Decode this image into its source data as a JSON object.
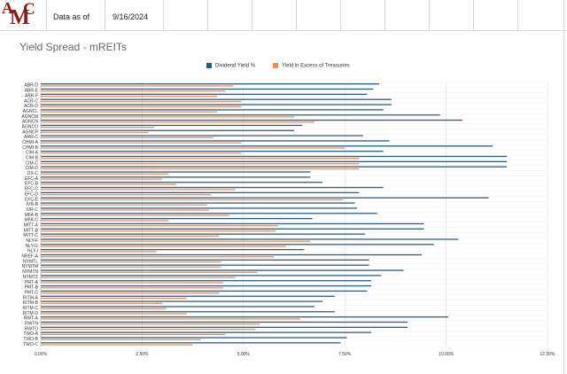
{
  "header": {
    "logo_text": "AMC",
    "data_as_of_label": "Data as of",
    "data_as_of_date": "9/16/2024"
  },
  "colors": {
    "dividend": "#2e5b7d",
    "excess": "#ef8c5a",
    "grid": "#dcdcdc",
    "border": "#d8d8d8"
  },
  "chart_data": {
    "type": "bar",
    "orientation": "horizontal",
    "title": "Yield Spread - mREITs",
    "xlabel": "",
    "ylabel": "",
    "xlim": [
      0,
      12.5
    ],
    "x_ticks": [
      0,
      2.5,
      5,
      7.5,
      10,
      12.5
    ],
    "x_tick_labels": [
      "0.00%",
      "2.50%",
      "5.00%",
      "7.50%",
      "10.00%",
      "12.50%"
    ],
    "grid": true,
    "legend_position": "top",
    "categories": [
      "ABR-D",
      "ABR-E",
      "ABR-F",
      "ACR-C",
      "ACR-D",
      "AGNCL",
      "AGNCM",
      "AGNCN",
      "AGNCO",
      "AGNCP",
      "ARR-C",
      "CHMI-A",
      "CHMI-B",
      "CIM-A",
      "CIM-B",
      "CIM-C",
      "CIM-D",
      "DX-C",
      "EFC-A",
      "EFC-B",
      "EFC-C",
      "EFC-D",
      "EFC-E",
      "IVR-B",
      "IVR-C",
      "MFA-B",
      "MFA-C",
      "MITT-A",
      "MITT-B",
      "MITT-C",
      "NLY-F",
      "NLY-G",
      "NLY-I",
      "NREF-A",
      "NYMTL",
      "NYMTM",
      "NYMTN",
      "NYMTZ",
      "PMT-A",
      "PMT-B",
      "PMT-C",
      "RITM-A",
      "RITM-B",
      "RITM-C",
      "RITM-D",
      "RWT-A",
      "RWTN",
      "RWTO",
      "TWO-A",
      "TWO-B",
      "TWO-C"
    ],
    "series": [
      {
        "name": "Dividend Yield %",
        "values": [
          8.35,
          8.2,
          8.05,
          8.65,
          8.65,
          8.45,
          9.85,
          10.4,
          6.45,
          6.25,
          7.95,
          8.6,
          11.15,
          8.45,
          11.5,
          11.5,
          11.5,
          6.65,
          6.65,
          6.95,
          8.45,
          7.85,
          11.05,
          7.75,
          7.8,
          8.3,
          6.7,
          9.45,
          9.45,
          8.0,
          10.3,
          9.7,
          6.5,
          9.4,
          8.1,
          8.1,
          8.95,
          8.4,
          8.15,
          8.15,
          8.05,
          7.25,
          6.95,
          6.75,
          7.25,
          10.05,
          9.05,
          9.05,
          8.15,
          7.55,
          7.4
        ]
      },
      {
        "name": "Yield in Excess of Treasuries",
        "values": [
          4.75,
          4.55,
          4.35,
          4.95,
          4.95,
          4.35,
          6.25,
          6.75,
          2.8,
          2.65,
          4.25,
          4.95,
          7.5,
          4.95,
          7.85,
          7.85,
          7.85,
          3.15,
          3.0,
          3.35,
          4.8,
          4.2,
          7.45,
          4.1,
          4.15,
          4.65,
          3.15,
          5.85,
          5.8,
          4.4,
          6.65,
          6.05,
          2.85,
          5.75,
          4.45,
          4.45,
          5.35,
          4.8,
          4.5,
          4.5,
          4.4,
          3.6,
          3.0,
          3.1,
          3.6,
          6.4,
          5.4,
          5.3,
          4.55,
          3.95,
          3.75
        ]
      }
    ]
  }
}
